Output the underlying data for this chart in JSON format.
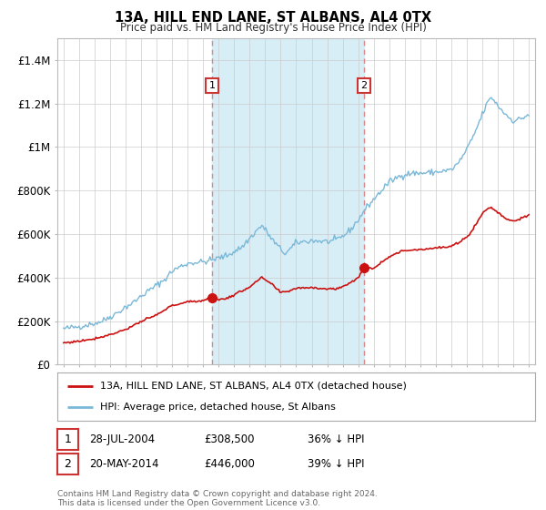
{
  "title": "13A, HILL END LANE, ST ALBANS, AL4 0TX",
  "subtitle": "Price paid vs. HM Land Registry's House Price Index (HPI)",
  "legend_line1": "13A, HILL END LANE, ST ALBANS, AL4 0TX (detached house)",
  "legend_line2": "HPI: Average price, detached house, St Albans",
  "footer": "Contains HM Land Registry data © Crown copyright and database right 2024.\nThis data is licensed under the Open Government Licence v3.0.",
  "annotation1_label": "1",
  "annotation1_date": "28-JUL-2004",
  "annotation1_price": "£308,500",
  "annotation1_pct": "36% ↓ HPI",
  "annotation2_label": "2",
  "annotation2_date": "20-MAY-2014",
  "annotation2_price": "£446,000",
  "annotation2_pct": "39% ↓ HPI",
  "sale1_x": 2004.57,
  "sale1_y": 308500,
  "sale2_x": 2014.38,
  "sale2_y": 446000,
  "hpi_color": "#7ab8d8",
  "price_color": "#cc1111",
  "vline_color": "#dd8888",
  "shade_color": "#d8eef7",
  "background_color": "#ffffff",
  "grid_color": "#cccccc",
  "ylim": [
    0,
    1500000
  ],
  "xlim_start": 1994.6,
  "xlim_end": 2025.4,
  "yticks": [
    0,
    200000,
    400000,
    600000,
    800000,
    1000000,
    1200000,
    1400000
  ],
  "ytick_labels": [
    "£0",
    "£200K",
    "£400K",
    "£600K",
    "£800K",
    "£1M",
    "£1.2M",
    "£1.4M"
  ],
  "hpi_anchors_t": [
    1995.0,
    1996.0,
    1997.0,
    1997.5,
    1998.0,
    1998.5,
    1999.0,
    1999.5,
    2000.0,
    2000.5,
    2001.0,
    2001.5,
    2002.0,
    2002.5,
    2003.0,
    2003.5,
    2004.0,
    2004.5,
    2005.0,
    2005.5,
    2006.0,
    2006.5,
    2007.0,
    2007.5,
    2007.8,
    2008.0,
    2008.5,
    2009.0,
    2009.3,
    2009.6,
    2010.0,
    2010.5,
    2011.0,
    2011.5,
    2012.0,
    2012.5,
    2013.0,
    2013.5,
    2014.0,
    2014.5,
    2015.0,
    2015.5,
    2016.0,
    2016.5,
    2017.0,
    2017.5,
    2018.0,
    2018.5,
    2019.0,
    2019.5,
    2020.0,
    2020.5,
    2021.0,
    2021.3,
    2021.6,
    2022.0,
    2022.3,
    2022.6,
    2023.0,
    2023.5,
    2024.0,
    2024.5,
    2025.0
  ],
  "hpi_anchors_p": [
    165000,
    175000,
    190000,
    200000,
    220000,
    240000,
    265000,
    285000,
    315000,
    340000,
    365000,
    390000,
    430000,
    450000,
    465000,
    470000,
    472000,
    480000,
    490000,
    500000,
    520000,
    540000,
    580000,
    620000,
    640000,
    620000,
    570000,
    530000,
    510000,
    530000,
    560000,
    565000,
    570000,
    568000,
    565000,
    570000,
    590000,
    620000,
    665000,
    720000,
    760000,
    800000,
    840000,
    860000,
    875000,
    880000,
    880000,
    882000,
    885000,
    890000,
    895000,
    930000,
    990000,
    1030000,
    1080000,
    1150000,
    1200000,
    1230000,
    1190000,
    1150000,
    1120000,
    1130000,
    1150000
  ],
  "price_anchors_t": [
    1995.0,
    1996.0,
    1997.0,
    1998.0,
    1999.0,
    2000.0,
    2001.0,
    2002.0,
    2003.0,
    2004.0,
    2004.57,
    2005.0,
    2005.5,
    2006.0,
    2007.0,
    2007.8,
    2008.5,
    2009.0,
    2009.5,
    2010.0,
    2011.0,
    2012.0,
    2012.5,
    2013.0,
    2013.5,
    2014.0,
    2014.38,
    2015.0,
    2016.0,
    2017.0,
    2018.0,
    2019.0,
    2020.0,
    2021.0,
    2021.5,
    2022.0,
    2022.5,
    2023.0,
    2023.5,
    2024.0,
    2024.5,
    2025.0
  ],
  "price_anchors_p": [
    100000,
    108000,
    120000,
    138000,
    162000,
    198000,
    228000,
    272000,
    288000,
    295000,
    308500,
    298000,
    305000,
    320000,
    358000,
    400000,
    365000,
    330000,
    338000,
    352000,
    355000,
    348000,
    348000,
    358000,
    378000,
    400000,
    446000,
    444000,
    498000,
    525000,
    530000,
    536000,
    542000,
    585000,
    635000,
    695000,
    725000,
    700000,
    672000,
    660000,
    672000,
    685000
  ]
}
